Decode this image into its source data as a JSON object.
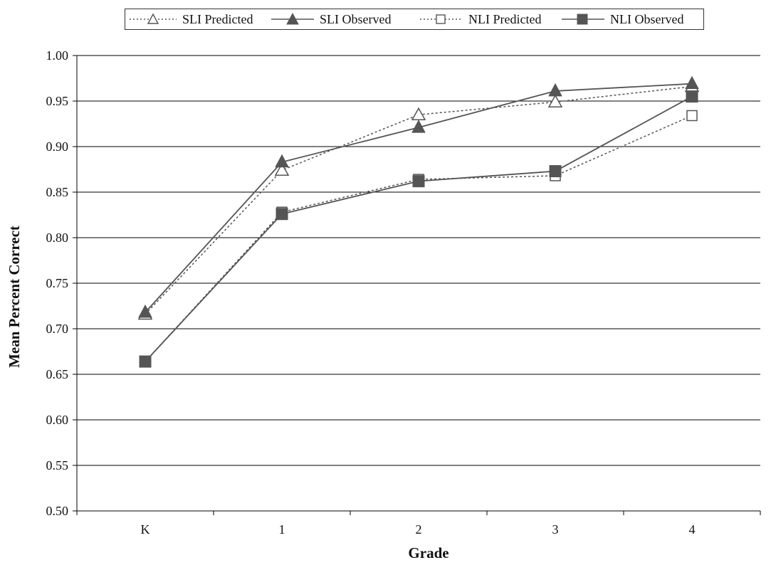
{
  "chart_data": {
    "type": "line",
    "categories": [
      "K",
      "1",
      "2",
      "3",
      "4"
    ],
    "xlabel": "Grade",
    "ylabel": "Mean Percent Correct",
    "ylim": [
      0.5,
      1.0
    ],
    "ytick_step": 0.05,
    "yticks": [
      "0.50",
      "0.55",
      "0.60",
      "0.65",
      "0.70",
      "0.75",
      "0.80",
      "0.85",
      "0.90",
      "0.95",
      "1.00"
    ],
    "grid": "horizontal",
    "legend_position": "top",
    "series": [
      {
        "name": "SLI Predicted",
        "values": [
          0.716,
          0.874,
          0.935,
          0.949,
          0.966
        ],
        "marker": "triangle-open",
        "line": "dotted"
      },
      {
        "name": "SLI Observed",
        "values": [
          0.718,
          0.883,
          0.921,
          0.961,
          0.969
        ],
        "marker": "triangle-filled",
        "line": "solid"
      },
      {
        "name": "NLI Predicted",
        "values": [
          0.664,
          0.828,
          0.864,
          0.868,
          0.934
        ],
        "marker": "square-open",
        "line": "dotted"
      },
      {
        "name": "NLI Observed",
        "values": [
          0.664,
          0.826,
          0.862,
          0.873,
          0.955
        ],
        "marker": "square-filled",
        "line": "solid"
      }
    ],
    "colors": {
      "line": "#555555",
      "marker": "#555555",
      "grid": "#000000"
    }
  }
}
